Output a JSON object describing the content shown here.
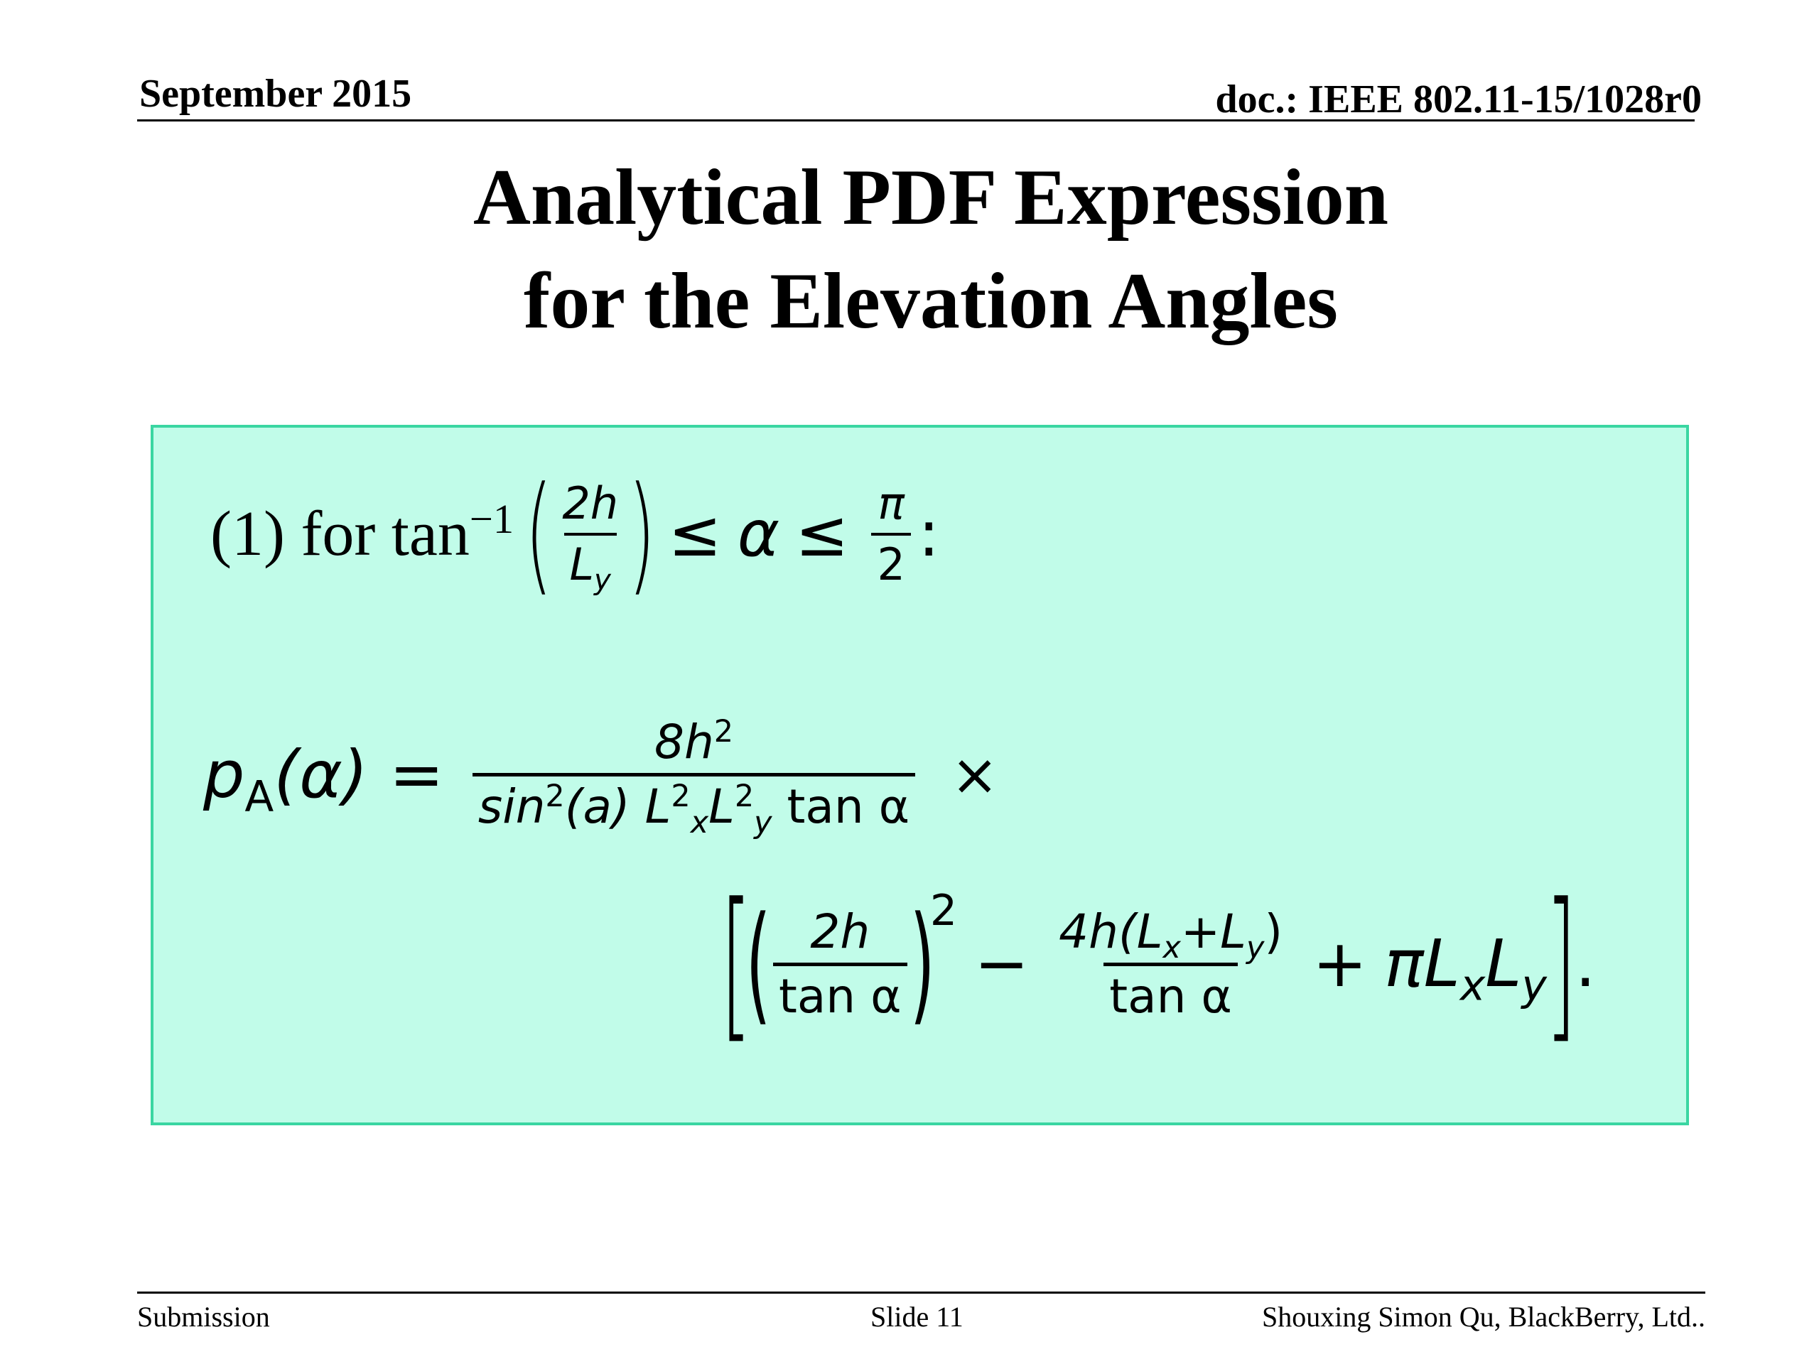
{
  "header": {
    "date": "September 2015",
    "doc": "doc.: IEEE 802.11-15/1028r0"
  },
  "title": {
    "line1": "Analytical PDF Expression",
    "line2": "for the Elevation Angles"
  },
  "formula": {
    "condition": {
      "label": "(1) for tan",
      "inv": "−1",
      "frac_num": "2h",
      "frac_den_base": "L",
      "frac_den_sub": "y",
      "le1": "≤",
      "alpha": "α",
      "le2": "≤",
      "pi_num": "π",
      "pi_den": "2",
      "colon": ":"
    },
    "eq1": {
      "lhs_p": "p",
      "lhs_sub": "A",
      "lhs_arg": "(α)",
      "equals": "=",
      "num_coef": "8h",
      "num_exp": "2",
      "den_sin": "sin",
      "den_sin_exp": "2",
      "den_arg": "(a) ",
      "den_L1": "L",
      "den_L1_sup": "2",
      "den_L1_sub": "x",
      "den_L2": "L",
      "den_L2_sup": "2",
      "den_L2_sub": "y",
      "den_tan": " tan α",
      "times": "×"
    },
    "eq2": {
      "lbracket": "[",
      "lparen": "(",
      "f1_num": "2h",
      "f1_den": "tan α",
      "rparen": ")",
      "sq": "2",
      "minus": "−",
      "f2_num_a": "4h",
      "f2_num_b": "(L",
      "f2_num_b_sub": "x",
      "f2_num_c": "+L",
      "f2_num_c_sub": "y",
      "f2_num_d": ")",
      "f2_den": "tan α",
      "plus": "+",
      "term_a": "πL",
      "term_a_sub": "x",
      "term_b": "L",
      "term_b_sub": "y",
      "rbracket": "]",
      "period": "."
    }
  },
  "footer": {
    "left": "Submission",
    "center": "Slide 11",
    "right": "Shouxing Simon Qu, BlackBerry, Ltd.."
  },
  "colors": {
    "box_fill": "#c1fce9",
    "box_border": "#3ad6a2"
  }
}
